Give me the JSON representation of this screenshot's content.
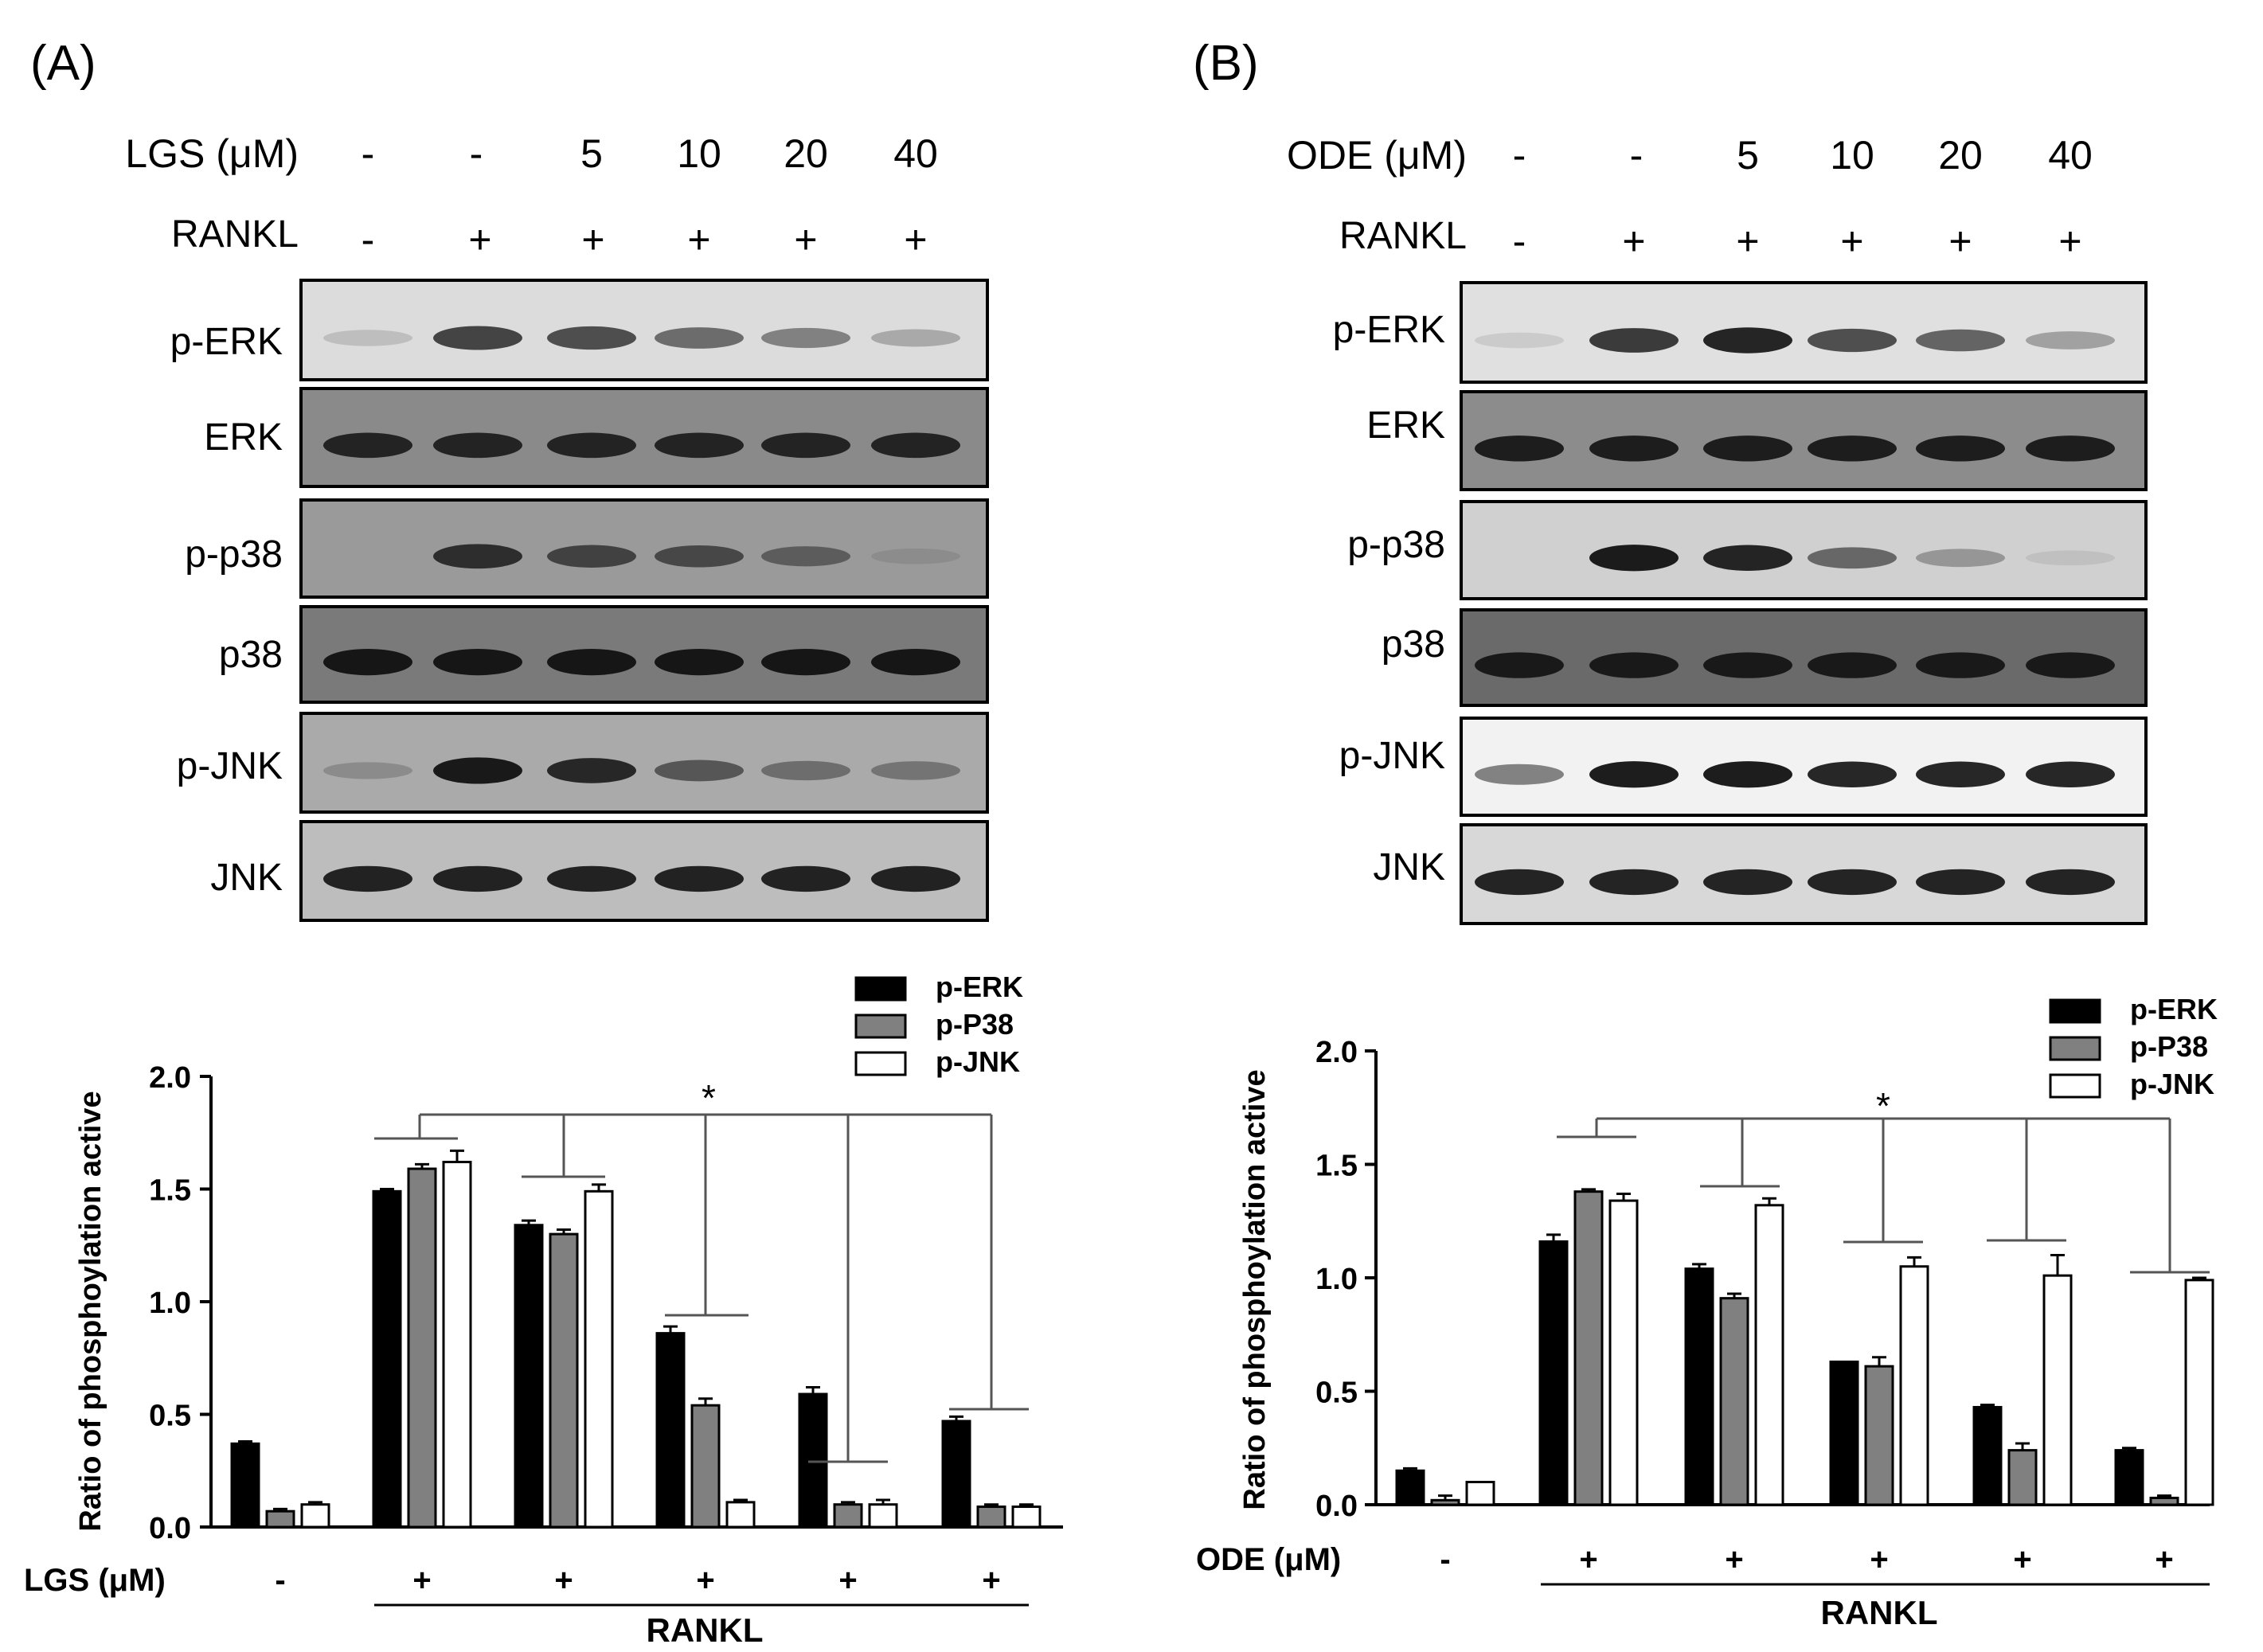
{
  "panels": [
    {
      "label": "(A)",
      "treatment_label": "LGS (μM)",
      "treatment_values": [
        "-",
        "-",
        "5",
        "10",
        "20",
        "40"
      ],
      "rankl_label": "RANKL",
      "rankl_values": [
        "-",
        "+",
        "+",
        "+",
        "+",
        "+"
      ],
      "blot_rows": [
        {
          "label": "p-ERK",
          "intensity": [
            0.15,
            0.75,
            0.7,
            0.55,
            0.45,
            0.25
          ],
          "background": "#dcdcdc"
        },
        {
          "label": "ERK",
          "intensity": [
            0.85,
            0.85,
            0.85,
            0.85,
            0.85,
            0.85
          ],
          "background": "#8a8a8a"
        },
        {
          "label": "p-p38",
          "intensity": [
            0.0,
            0.8,
            0.65,
            0.6,
            0.45,
            0.1
          ],
          "background": "#9a9a9a"
        },
        {
          "label": "p38",
          "intensity": [
            0.95,
            0.95,
            0.95,
            0.95,
            0.95,
            0.95
          ],
          "background": "#7a7a7a"
        },
        {
          "label": "p-JNK",
          "intensity": [
            0.2,
            0.95,
            0.85,
            0.55,
            0.4,
            0.35
          ],
          "background": "#aaaaaa"
        },
        {
          "label": "JNK",
          "intensity": [
            0.9,
            0.9,
            0.9,
            0.9,
            0.9,
            0.9
          ],
          "background": "#bdbdbd"
        }
      ]
    },
    {
      "label": "(B)",
      "treatment_label": "ODE (μM)",
      "treatment_values": [
        "-",
        "-",
        "5",
        "10",
        "20",
        "40"
      ],
      "rankl_label": "RANKL",
      "rankl_values": [
        "-",
        "+",
        "+",
        "+",
        "+",
        "+"
      ],
      "blot_rows": [
        {
          "label": "p-ERK",
          "intensity": [
            0.1,
            0.8,
            0.9,
            0.7,
            0.6,
            0.3
          ],
          "background": "#e0e0e0"
        },
        {
          "label": "ERK",
          "intensity": [
            0.9,
            0.9,
            0.9,
            0.9,
            0.9,
            0.9
          ],
          "background": "#8c8c8c"
        },
        {
          "label": "p-p38",
          "intensity": [
            0.0,
            0.95,
            0.9,
            0.55,
            0.3,
            0.05
          ],
          "background": "#d0d0d0"
        },
        {
          "label": "p38",
          "intensity": [
            0.9,
            0.9,
            0.9,
            0.9,
            0.9,
            0.9
          ],
          "background": "#6a6a6a"
        },
        {
          "label": "p-JNK",
          "intensity": [
            0.5,
            0.95,
            0.95,
            0.9,
            0.9,
            0.9
          ],
          "background": "#f2f2f2"
        },
        {
          "label": "JNK",
          "intensity": [
            0.9,
            0.9,
            0.9,
            0.9,
            0.9,
            0.9
          ],
          "background": "#d8d8d8"
        }
      ]
    }
  ],
  "chart_data": [
    {
      "type": "bar",
      "panel": "(A)",
      "ylabel": "Ratio of phosphoylation active",
      "ylim": [
        0,
        2.0
      ],
      "yticks": [
        "0.0",
        "0.5",
        "1.0",
        "1.5",
        "2.0"
      ],
      "x_group_label": "LGS (μM)",
      "x_groups": [
        "-",
        "+",
        "+",
        "+",
        "+",
        "+"
      ],
      "bracket_label": "RANKL",
      "significance": "*",
      "series": [
        {
          "name": "p-ERK",
          "color": "#000000",
          "values": [
            0.37,
            1.49,
            1.34,
            0.86,
            0.59,
            0.47
          ],
          "errors": [
            0.01,
            0.01,
            0.02,
            0.03,
            0.03,
            0.02
          ]
        },
        {
          "name": "p-P38",
          "color": "#808080",
          "values": [
            0.07,
            1.59,
            1.3,
            0.54,
            0.1,
            0.09
          ],
          "errors": [
            0.01,
            0.02,
            0.02,
            0.03,
            0.01,
            0.01
          ]
        },
        {
          "name": "p-JNK",
          "color": "#ffffff",
          "values": [
            0.1,
            1.62,
            1.49,
            0.11,
            0.1,
            0.09
          ],
          "errors": [
            0.01,
            0.05,
            0.03,
            0.01,
            0.02,
            0.01
          ]
        }
      ],
      "legend_position": "top-right"
    },
    {
      "type": "bar",
      "panel": "(B)",
      "ylabel": "Ratio of phosphoylation active",
      "ylim": [
        0,
        2.0
      ],
      "yticks": [
        "0.0",
        "0.5",
        "1.0",
        "1.5",
        "2.0"
      ],
      "x_group_label": "ODE (μM)",
      "x_groups": [
        "-",
        "+",
        "+",
        "+",
        "+",
        "+"
      ],
      "bracket_label": "RANKL",
      "significance": "*",
      "series": [
        {
          "name": "p-ERK",
          "color": "#000000",
          "values": [
            0.15,
            1.16,
            1.04,
            0.63,
            0.43,
            0.24
          ],
          "errors": [
            0.01,
            0.03,
            0.02,
            0.0,
            0.01,
            0.01
          ]
        },
        {
          "name": "p-P38",
          "color": "#808080",
          "values": [
            0.02,
            1.38,
            0.91,
            0.61,
            0.24,
            0.03
          ],
          "errors": [
            0.02,
            0.01,
            0.02,
            0.04,
            0.03,
            0.01
          ]
        },
        {
          "name": "p-JNK",
          "color": "#ffffff",
          "values": [
            0.1,
            1.34,
            1.32,
            1.05,
            1.01,
            0.99
          ],
          "errors": [
            0.0,
            0.03,
            0.03,
            0.04,
            0.09,
            0.01
          ]
        }
      ],
      "legend_position": "top-right"
    }
  ]
}
